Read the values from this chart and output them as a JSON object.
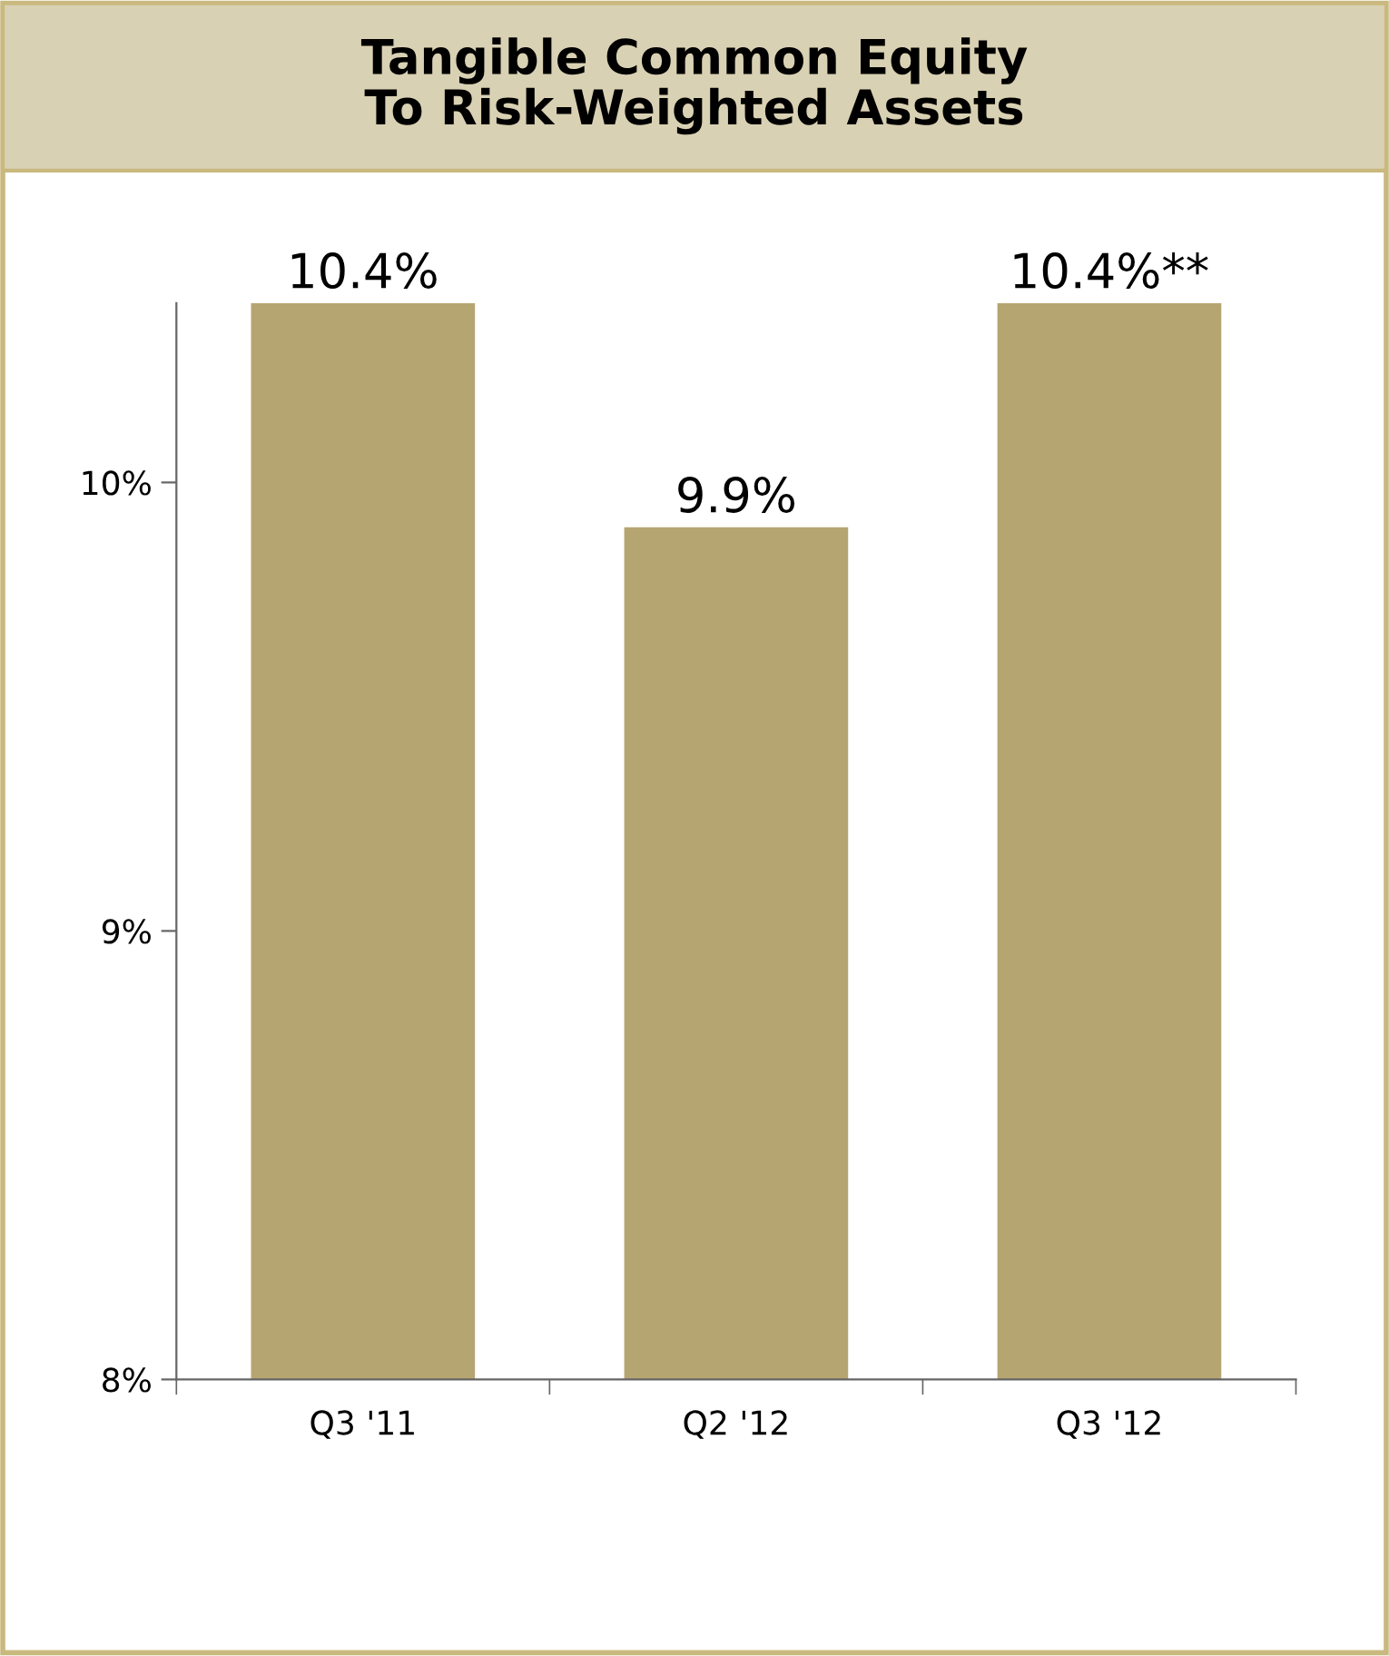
{
  "chart_data": {
    "type": "bar",
    "title": "Tangible Common Equity\nTo Risk-Weighted Assets",
    "categories": [
      "Q3 '11",
      "Q2 '12",
      "Q3 '12"
    ],
    "values": [
      10.4,
      9.9,
      10.4
    ],
    "color": "#b5a570",
    "value_labels": [
      "10.4%",
      "9.9%",
      "10.4%**"
    ],
    "ylim": [
      8,
      10.4
    ],
    "yticks": [
      {
        "value": 8,
        "label": "8%"
      },
      {
        "value": 9,
        "label": "9%"
      },
      {
        "value": 10,
        "label": "10%"
      }
    ],
    "grid": false,
    "legend": false
  }
}
